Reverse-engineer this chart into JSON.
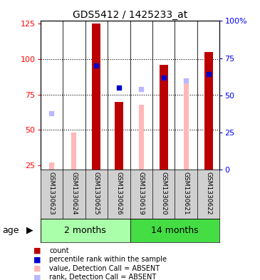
{
  "title": "GDS5412 / 1425233_at",
  "samples": [
    "GSM1330623",
    "GSM1330624",
    "GSM1330625",
    "GSM1330626",
    "GSM1330619",
    "GSM1330620",
    "GSM1330621",
    "GSM1330622"
  ],
  "groups": [
    {
      "label": "2 months",
      "color": "#aaffaa",
      "start": 0,
      "end": 4
    },
    {
      "label": "14 months",
      "color": "#44dd44",
      "start": 4,
      "end": 8
    }
  ],
  "count": [
    null,
    null,
    125,
    70,
    null,
    96,
    null,
    105
  ],
  "percentile_rank_right": [
    null,
    null,
    70,
    55,
    null,
    62,
    null,
    64
  ],
  "absent_value": [
    27,
    48,
    null,
    70,
    68,
    null,
    84,
    null
  ],
  "absent_rank_right": [
    null,
    null,
    null,
    null,
    54,
    null,
    60,
    null
  ],
  "light_blue_rank_right": [
    38,
    null,
    null,
    null,
    null,
    null,
    null,
    null
  ],
  "ylim_left": [
    22,
    127
  ],
  "ylim_right": [
    0,
    100
  ],
  "yticks_left": [
    25,
    50,
    75,
    100,
    125
  ],
  "yticks_right": [
    0,
    25,
    50,
    75,
    100
  ],
  "ytick_labels_right": [
    "0",
    "25",
    "50",
    "75",
    "100%"
  ],
  "count_color": "#bb0000",
  "percentile_color": "#0000cc",
  "absent_value_color": "#ffb8b8",
  "absent_rank_color": "#b8b8ff",
  "bg_color": "#d0d0d0",
  "age_label": "age",
  "legend_items": [
    {
      "color": "#bb0000",
      "label": "count"
    },
    {
      "color": "#0000cc",
      "label": "percentile rank within the sample"
    },
    {
      "color": "#ffb8b8",
      "label": "value, Detection Call = ABSENT"
    },
    {
      "color": "#b8b8ff",
      "label": "rank, Detection Call = ABSENT"
    }
  ]
}
